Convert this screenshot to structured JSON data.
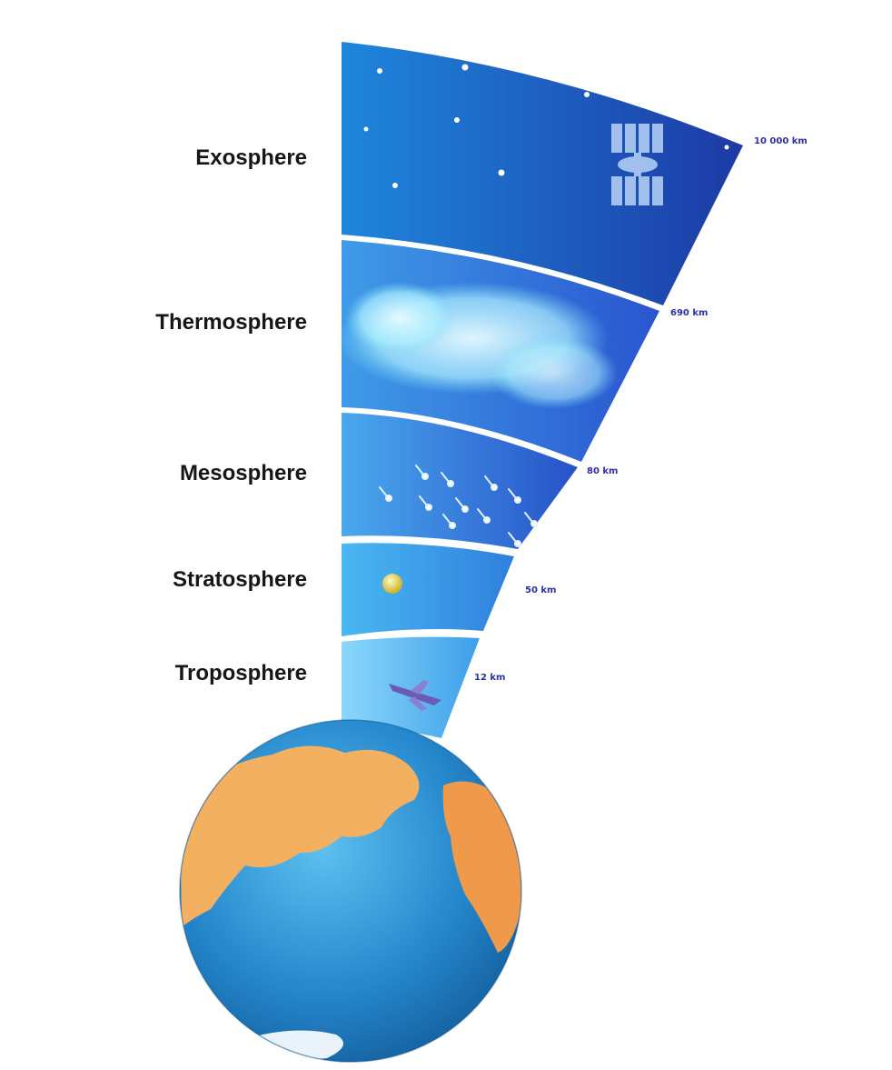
{
  "diagram": {
    "layers": [
      {
        "name": "Exosphere",
        "altitude": "10 000 km",
        "color_top": "#1a3aa8",
        "color_bottom": "#1e7fd6"
      },
      {
        "name": "Thermosphere",
        "altitude": "690 km",
        "color_top": "#2f62d8",
        "color_bottom": "#3aa6ee"
      },
      {
        "name": "Mesosphere",
        "altitude": "80 km",
        "color_top": "#2b63d6",
        "color_bottom": "#3a9ce8"
      },
      {
        "name": "Stratosphere",
        "altitude": "50 km",
        "color_top": "#2d84de",
        "color_bottom": "#40b6f0"
      },
      {
        "name": "Troposphere",
        "altitude": "12 km",
        "color_top": "#46a8ee",
        "color_bottom": "#7fd3fa"
      }
    ],
    "icons": [
      "stars",
      "satellite-icon",
      "aurora-cloud",
      "meteors-icon",
      "weather-balloon-icon",
      "airplane-icon",
      "earth-globe-icon"
    ],
    "colors": {
      "label_text": "#161616",
      "altitude_text": "#2e2ea8",
      "ocean": "#2a8fd0",
      "land": "#f2b060"
    }
  }
}
